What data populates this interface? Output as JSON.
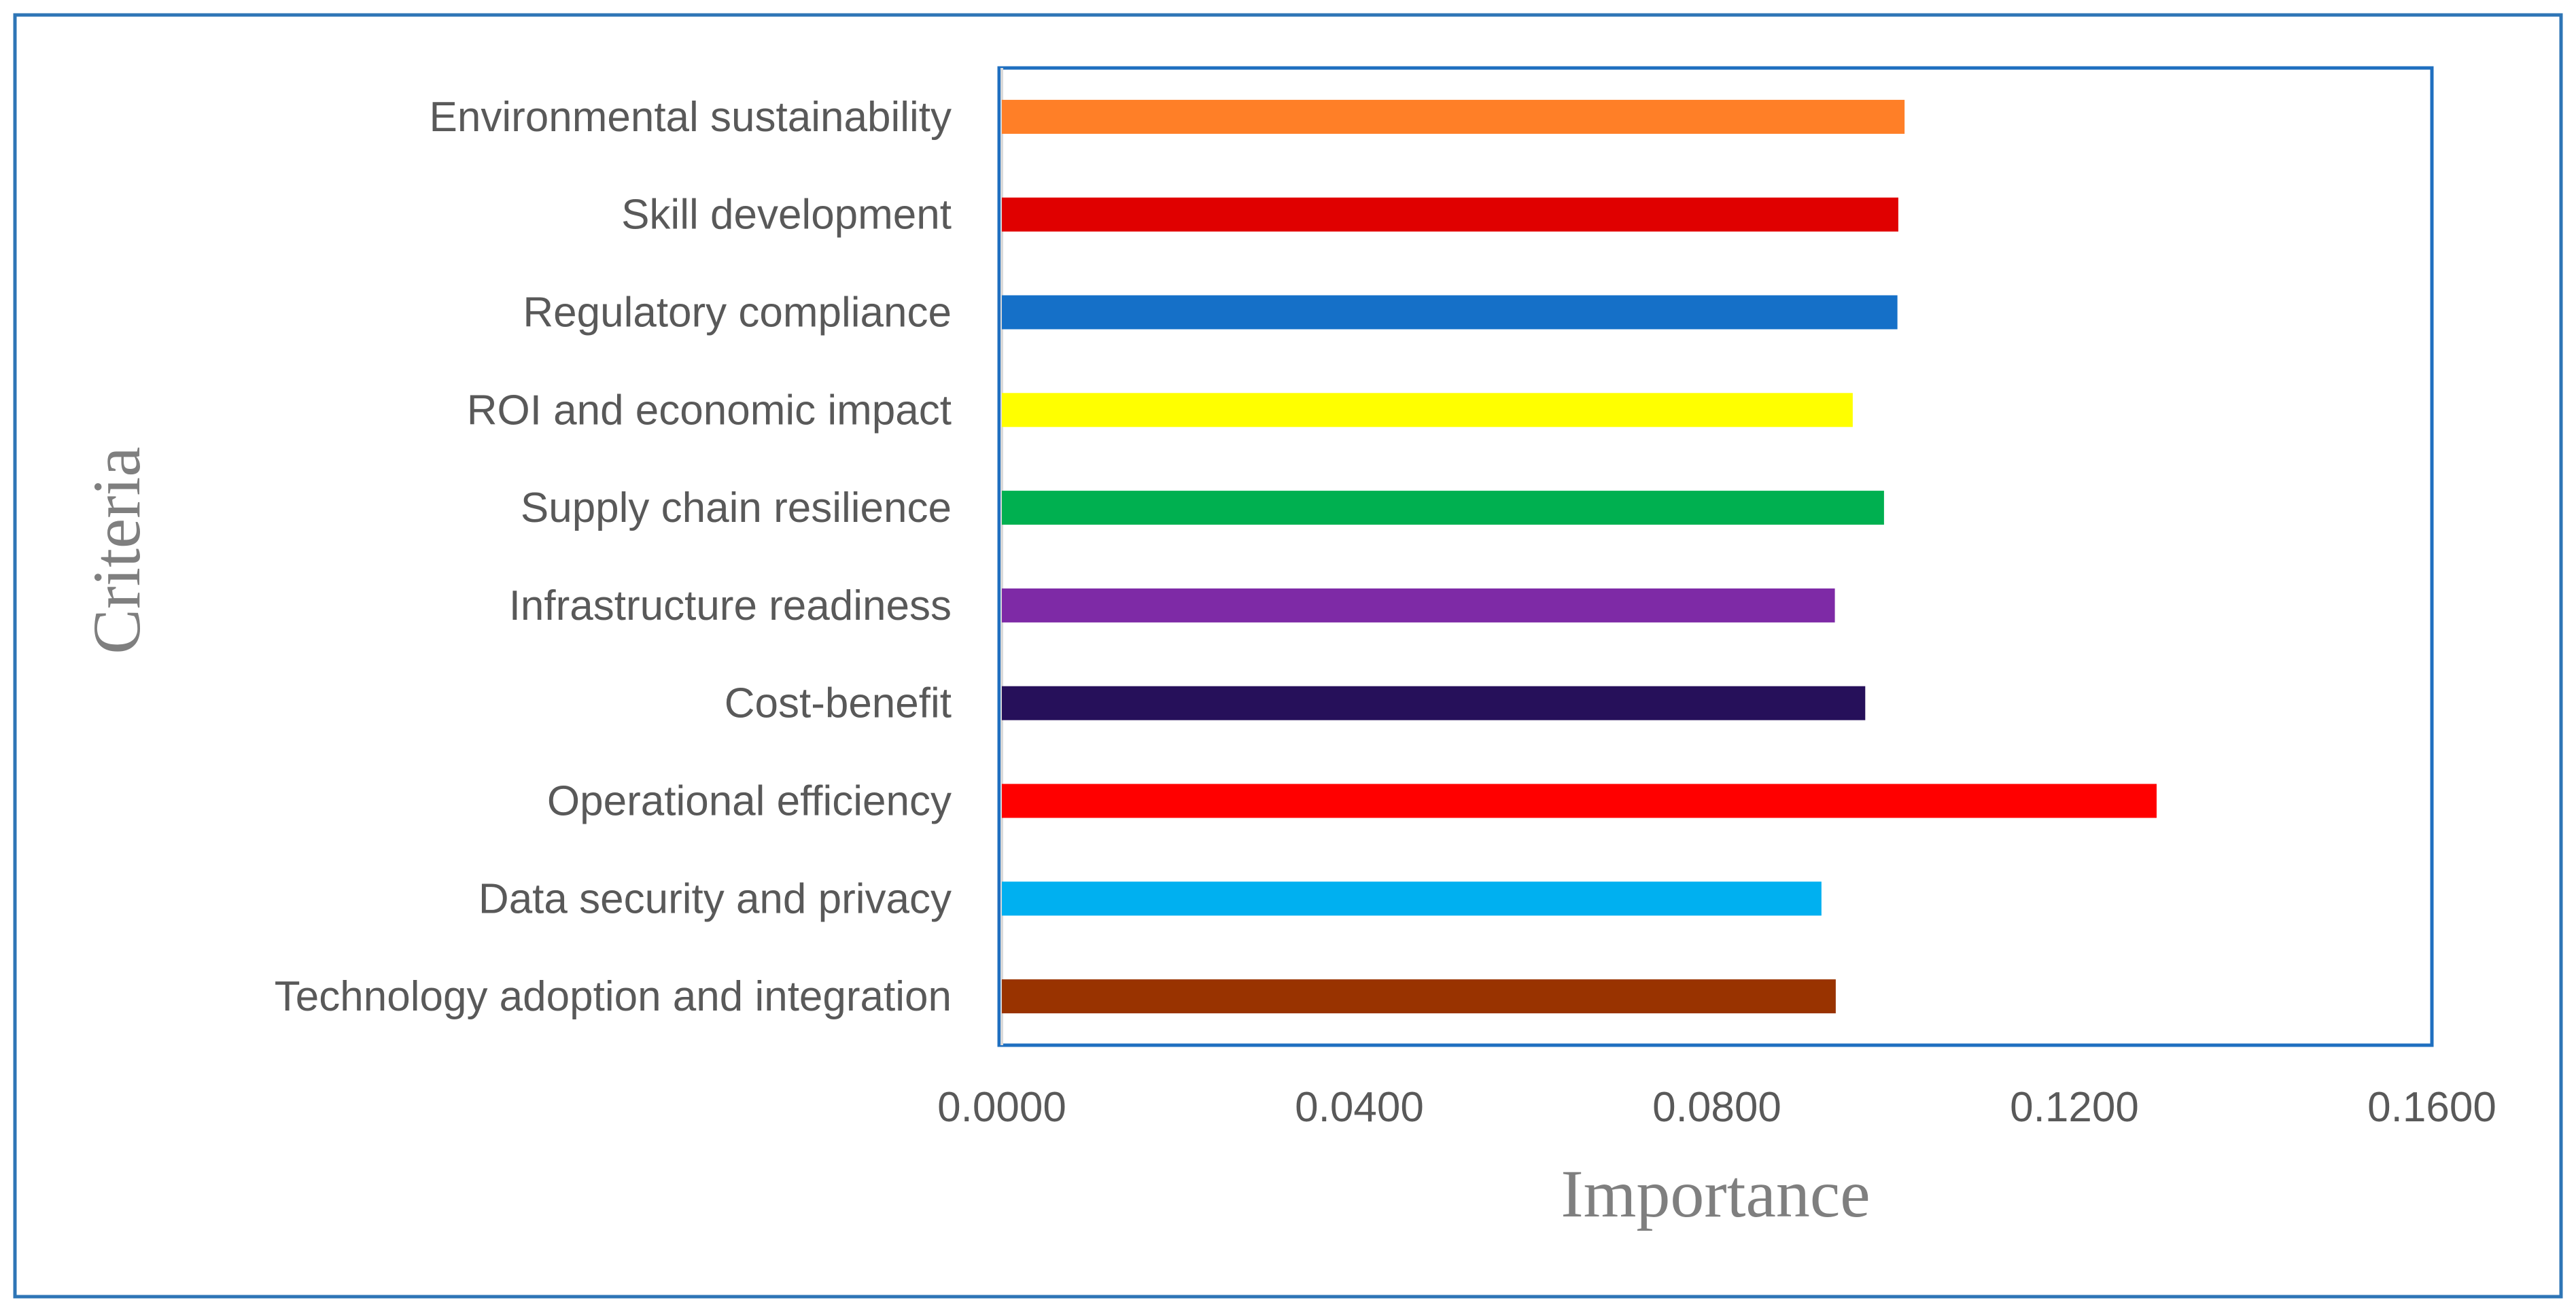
{
  "chart_data": {
    "type": "bar",
    "orientation": "horizontal",
    "title": "",
    "xlabel": "Importance",
    "ylabel": "Criteria",
    "xlim": [
      0,
      0.16
    ],
    "x_ticks": [
      "0.0000",
      "0.0400",
      "0.0800",
      "0.1200",
      "0.1600"
    ],
    "grid": false,
    "categories": [
      "Environmental sustainability",
      "Skill development",
      "Regulatory compliance",
      "ROI and economic impact",
      "Supply chain resilience",
      "Infrastructure readiness",
      "Cost-benefit",
      "Operational efficiency",
      "Data security and privacy",
      "Technology adoption and integration"
    ],
    "values": [
      0.101,
      0.1003,
      0.1002,
      0.0952,
      0.0987,
      0.0932,
      0.0966,
      0.1292,
      0.0917,
      0.0933
    ],
    "colors": [
      "#FF7F27",
      "#E00000",
      "#1570C8",
      "#FFFF00",
      "#00B050",
      "#7E2AA6",
      "#26105A",
      "#FF0000",
      "#00B0F0",
      "#993300"
    ]
  }
}
